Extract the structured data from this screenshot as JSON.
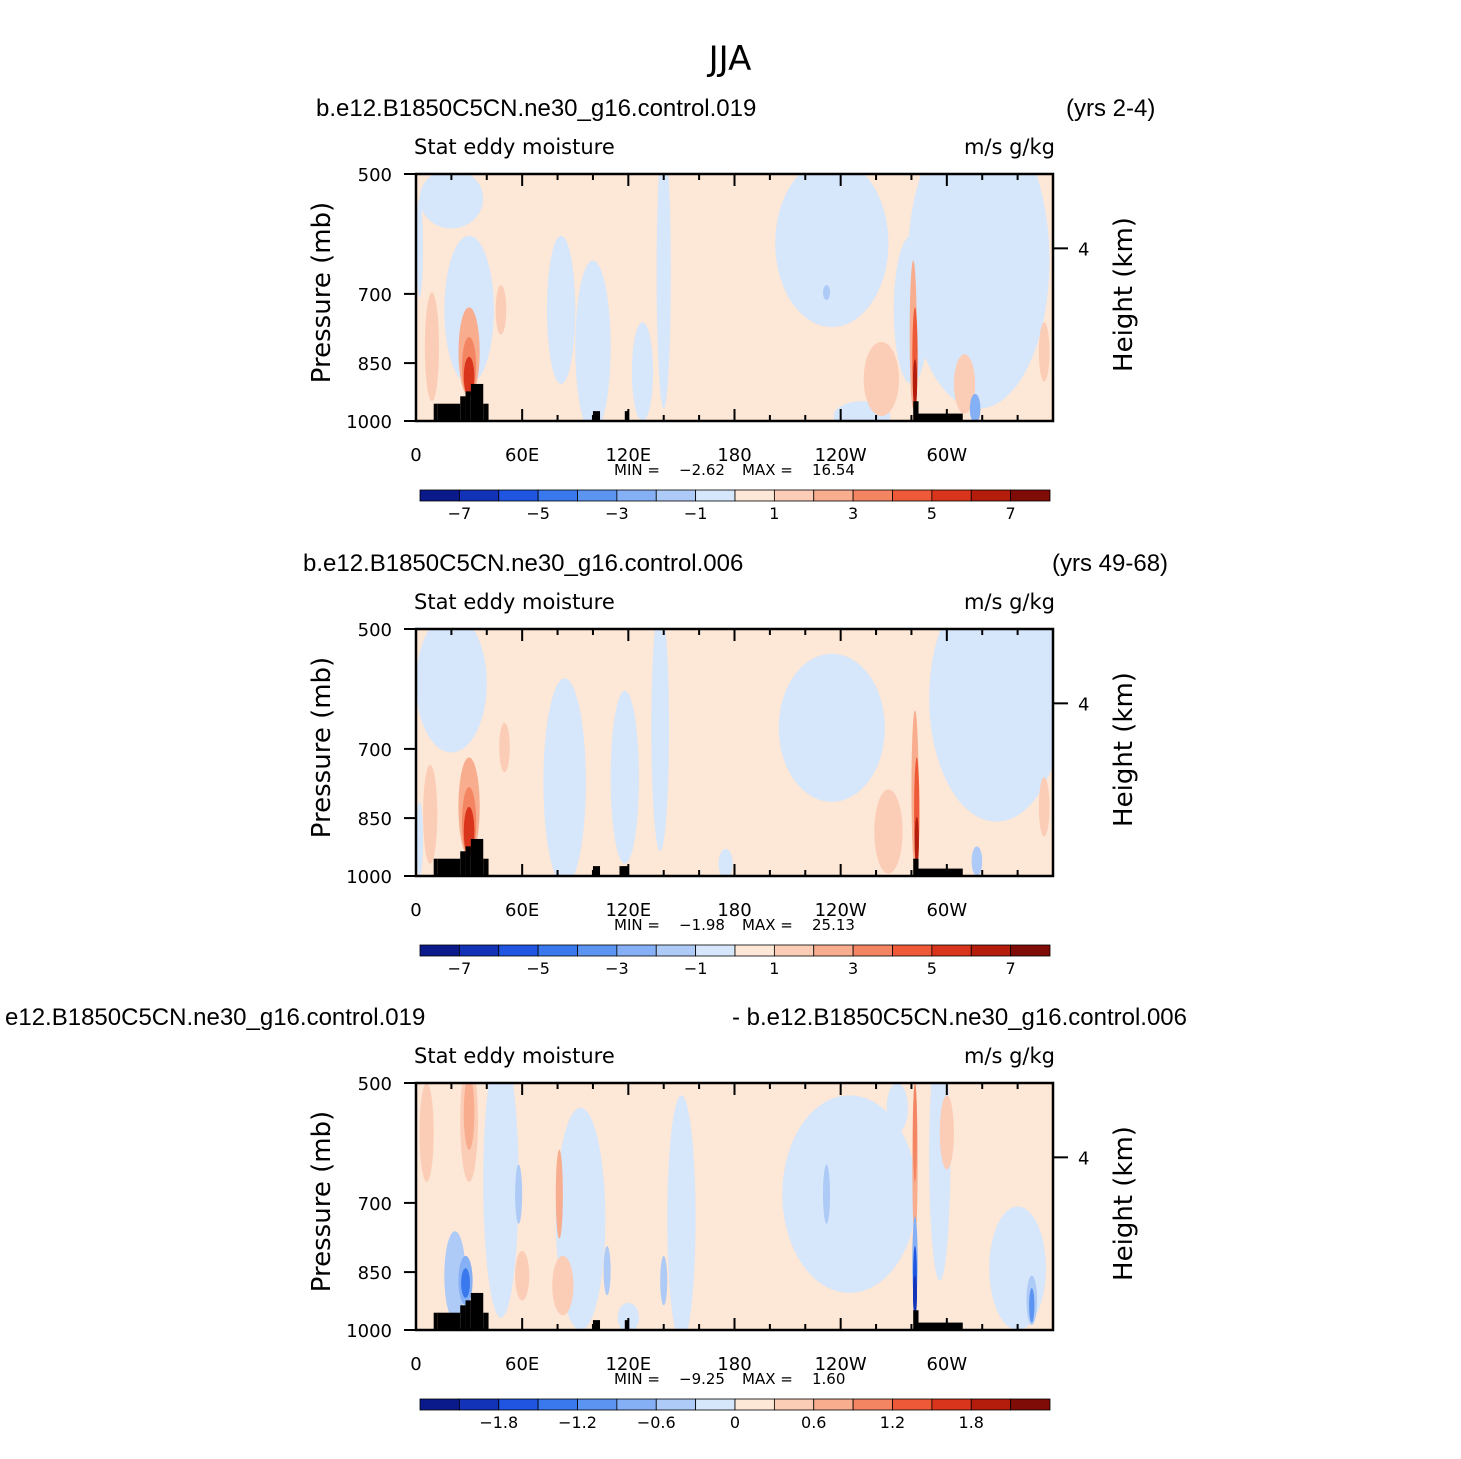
{
  "figure_title": "JJA",
  "chart_data": [
    {
      "type": "heatmap",
      "title_left": "b.e12.B1850C5CN.ne30_g16.control.019",
      "title_right": "(yrs 2-4)",
      "subtitle_left": "Stat eddy moisture",
      "subtitle_right": "m/s g/kg",
      "ylabel": "Pressure (mb)",
      "ylabel_right": "Height (km)",
      "y_ticks": [
        "500",
        "700",
        "850",
        "1000"
      ],
      "y_right_ticks": [
        "4"
      ],
      "x_ticks": [
        "0",
        "60E",
        "120E",
        "180",
        "120W",
        "60W"
      ],
      "min_label": "MIN =",
      "min_value": "-2.62",
      "max_label": "MAX =",
      "max_value": "16.54",
      "colorbar_labels": [
        "-7",
        "-5",
        "-3",
        "-1",
        "1",
        "3",
        "5",
        "7"
      ],
      "colorbar_levels": [
        -8,
        -7,
        -6,
        -5,
        -4,
        -3,
        -2,
        -1,
        0,
        1,
        2,
        3,
        4,
        5,
        6,
        7,
        8
      ]
    },
    {
      "type": "heatmap",
      "title_left": "b.e12.B1850C5CN.ne30_g16.control.006",
      "title_right": "(yrs 49-68)",
      "subtitle_left": "Stat eddy moisture",
      "subtitle_right": "m/s g/kg",
      "ylabel": "Pressure (mb)",
      "ylabel_right": "Height (km)",
      "y_ticks": [
        "500",
        "700",
        "850",
        "1000"
      ],
      "y_right_ticks": [
        "4"
      ],
      "x_ticks": [
        "0",
        "60E",
        "120E",
        "180",
        "120W",
        "60W"
      ],
      "min_label": "MIN =",
      "min_value": "-1.98",
      "max_label": "MAX =",
      "max_value": "25.13",
      "colorbar_labels": [
        "-7",
        "-5",
        "-3",
        "-1",
        "1",
        "3",
        "5",
        "7"
      ],
      "colorbar_levels": [
        -8,
        -7,
        -6,
        -5,
        -4,
        -3,
        -2,
        -1,
        0,
        1,
        2,
        3,
        4,
        5,
        6,
        7,
        8
      ]
    },
    {
      "type": "heatmap",
      "title_left": "e12.B1850C5CN.ne30_g16.control.019",
      "title_right": "- b.e12.B1850C5CN.ne30_g16.control.006",
      "subtitle_left": "Stat eddy moisture",
      "subtitle_right": "m/s g/kg",
      "ylabel": "Pressure (mb)",
      "ylabel_right": "Height (km)",
      "y_ticks": [
        "500",
        "700",
        "850",
        "1000"
      ],
      "y_right_ticks": [
        "4"
      ],
      "x_ticks": [
        "0",
        "60E",
        "120E",
        "180",
        "120W",
        "60W"
      ],
      "min_label": "MIN =",
      "min_value": "-9.25",
      "max_label": "MAX =",
      "max_value": "1.60",
      "colorbar_labels": [
        "-1.8",
        "-1.2",
        "-0.6",
        "0",
        "0.6",
        "1.2",
        "1.8"
      ],
      "colorbar_levels": [
        -2.4,
        -2.1,
        -1.8,
        -1.5,
        -1.2,
        -0.9,
        -0.6,
        -0.3,
        0,
        0.3,
        0.6,
        0.9,
        1.2,
        1.5,
        1.8,
        2.1,
        2.4
      ]
    }
  ],
  "colors": {
    "palette": [
      "#0b1a8a",
      "#1232b8",
      "#1f55e0",
      "#3a78ee",
      "#5c94f2",
      "#86b0f5",
      "#aecbf7",
      "#d6e6fb",
      "#fde7d6",
      "#fbcdb6",
      "#f8ad8e",
      "#f48563",
      "#ee5a38",
      "#d9351c",
      "#b41c0c",
      "#7f0c06"
    ],
    "topography": "#000000"
  }
}
